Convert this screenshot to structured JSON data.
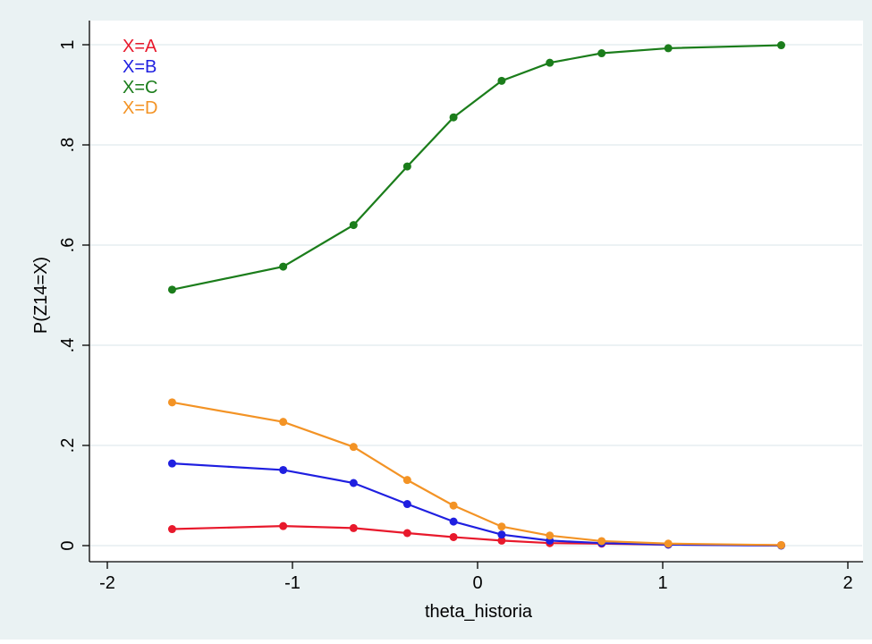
{
  "chart_data": {
    "type": "line",
    "title": "",
    "xlabel": "theta_historia",
    "ylabel": "P(Z14=X)",
    "xlim": [
      -2,
      2
    ],
    "ylim": [
      0,
      1
    ],
    "x_ticks": [
      -2,
      -1,
      0,
      1,
      2
    ],
    "x_tick_labels": [
      "-2",
      "-1",
      "0",
      "1",
      "2"
    ],
    "y_ticks": [
      0,
      0.2,
      0.4,
      0.6,
      0.8,
      1
    ],
    "y_tick_labels": [
      "0",
      ".2",
      ".4",
      ".6",
      ".8",
      "1"
    ],
    "grid": "horizontal",
    "legend_position": "top-left",
    "x": [
      -1.65,
      -1.05,
      -0.67,
      -0.38,
      -0.13,
      0.13,
      0.39,
      0.67,
      1.03,
      1.64
    ],
    "series": [
      {
        "name": "X=A",
        "color": "#e8192c",
        "values": [
          0.033,
          0.039,
          0.035,
          0.025,
          0.017,
          0.01,
          0.005,
          0.004,
          0.002,
          0.001
        ]
      },
      {
        "name": "X=B",
        "color": "#1f1fe0",
        "values": [
          0.164,
          0.151,
          0.125,
          0.083,
          0.048,
          0.022,
          0.01,
          0.005,
          0.002,
          0.0
        ]
      },
      {
        "name": "X=C",
        "color": "#1b7d1b",
        "values": [
          0.511,
          0.557,
          0.64,
          0.757,
          0.855,
          0.928,
          0.964,
          0.983,
          0.993,
          0.999
        ]
      },
      {
        "name": "X=D",
        "color": "#f39325",
        "values": [
          0.286,
          0.247,
          0.197,
          0.131,
          0.08,
          0.038,
          0.02,
          0.009,
          0.004,
          0.001
        ]
      }
    ]
  },
  "colors": {
    "outer_background": "#eaf2f3",
    "plot_background": "#ffffff",
    "grid": "#e6eef0",
    "axis": "#000000"
  }
}
